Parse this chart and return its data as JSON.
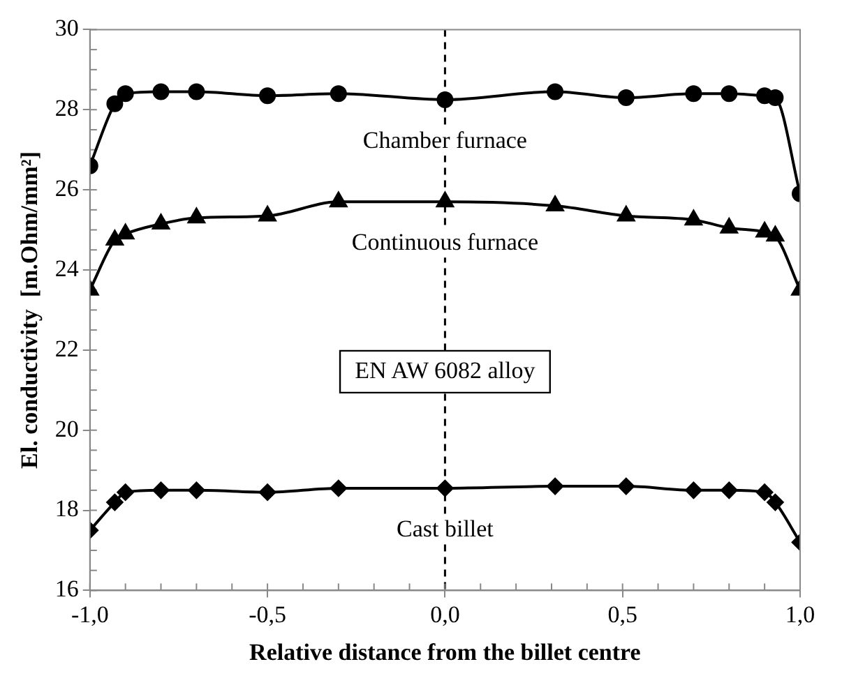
{
  "chart_data": {
    "type": "line",
    "xlabel": "Relative distance from the billet centre",
    "ylabel": "El. conductivity  [m.Ohm/mm²]",
    "x": [
      -1,
      -0.93,
      -0.9,
      -0.8,
      -0.7,
      -0.5,
      -0.3,
      0,
      0.31,
      0.51,
      0.7,
      0.8,
      0.9,
      0.93,
      1
    ],
    "series": [
      {
        "name": "Chamber furnace",
        "color": "#000000",
        "marker": "circle",
        "values": [
          26.6,
          28.15,
          28.4,
          28.45,
          28.45,
          28.35,
          28.4,
          28.25,
          28.45,
          28.3,
          28.4,
          28.4,
          28.35,
          28.3,
          25.9
        ]
      },
      {
        "name": "Continuous furnace",
        "color": "#000000",
        "marker": "triangle",
        "values": [
          23.5,
          24.75,
          24.9,
          25.15,
          25.3,
          25.35,
          25.7,
          25.7,
          25.6,
          25.35,
          25.25,
          25.05,
          24.95,
          24.85,
          23.5
        ]
      },
      {
        "name": "Cast billet",
        "color": "#000000",
        "marker": "diamond",
        "values": [
          17.5,
          18.2,
          18.45,
          18.5,
          18.5,
          18.45,
          18.55,
          18.55,
          18.6,
          18.6,
          18.5,
          18.5,
          18.45,
          18.2,
          17.2
        ]
      }
    ],
    "xlim": [
      -1,
      1
    ],
    "xticks": [
      {
        "value": -1,
        "label": "-1,0"
      },
      {
        "value": -0.5,
        "label": "-0,5"
      },
      {
        "value": 0,
        "label": "0,0"
      },
      {
        "value": 0.5,
        "label": "0,5"
      },
      {
        "value": 1,
        "label": "1,0"
      }
    ],
    "ylim": [
      16,
      30
    ],
    "yticks": [
      16,
      18,
      20,
      22,
      24,
      26,
      28,
      30
    ],
    "ref_lines": [
      {
        "axis": "x",
        "value": 0,
        "line_style": "dashed",
        "color": "#000000"
      }
    ],
    "annotations": [
      "EN AW 6082 alloy"
    ],
    "grid": false,
    "legend": false,
    "line_style": "solid"
  }
}
